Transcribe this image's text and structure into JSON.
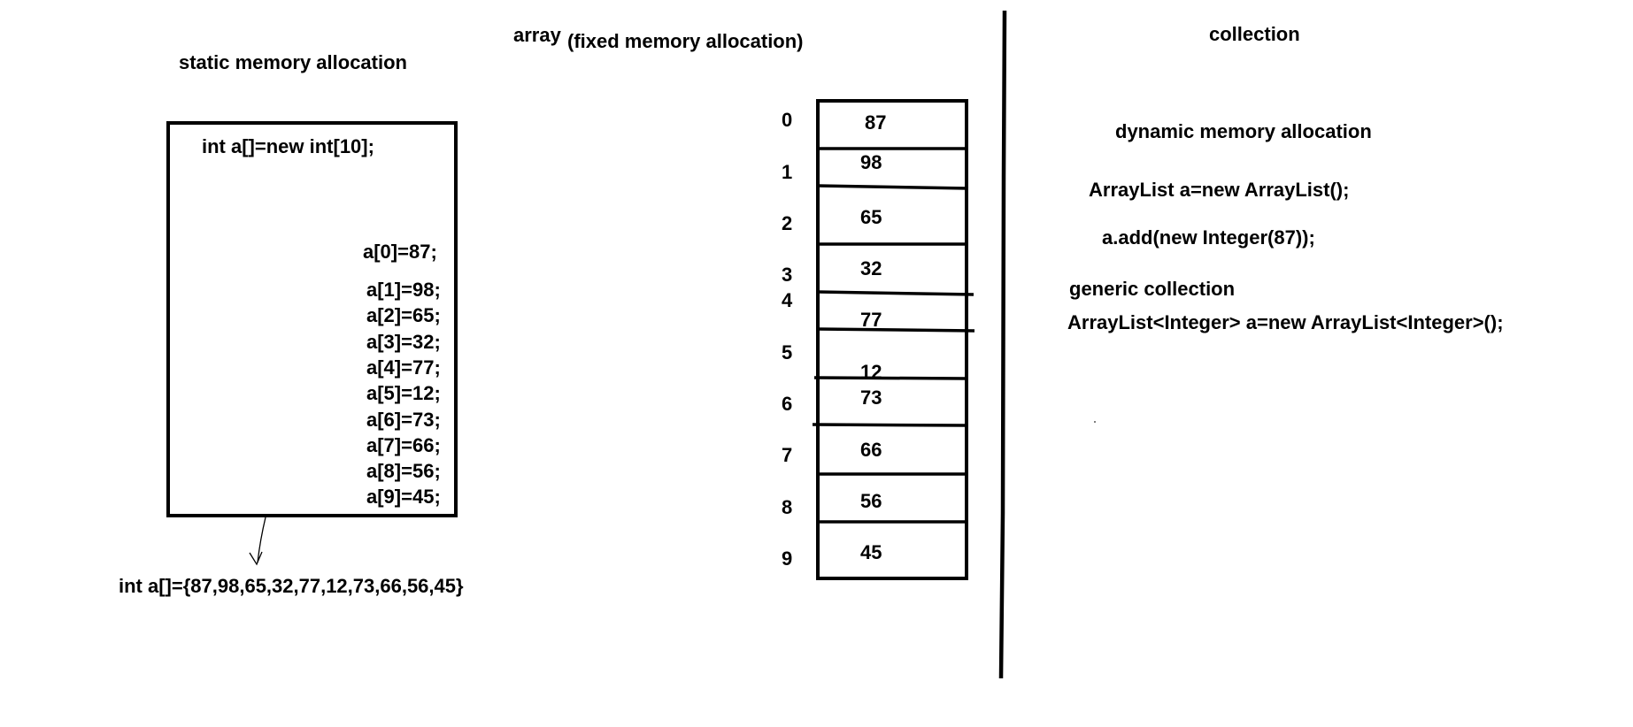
{
  "left": {
    "title": "static memory allocation",
    "declaration": "int a[]=new int[10];",
    "assignments": [
      "a[0]=87;",
      "a[1]=98;",
      "a[2]=65;",
      "a[3]=32;",
      "a[4]=77;",
      "a[5]=12;",
      "a[6]=73;",
      "a[7]=66;",
      "a[8]=56;",
      "a[9]=45;"
    ],
    "initializer": "int a[]={87,98,65,32,77,12,73,66,56,45}"
  },
  "middle": {
    "title_word": "array",
    "title_note": "(fixed memory allocation)",
    "indices": [
      "0",
      "1",
      "2",
      "3",
      "4",
      "5",
      "6",
      "7",
      "8",
      "9"
    ],
    "values": [
      "87",
      "98",
      "65",
      "32",
      "77",
      "12",
      "73",
      "66",
      "56",
      "45"
    ]
  },
  "right": {
    "title": "collection",
    "subtitle": "dynamic memory allocation",
    "line1": "ArrayList a=new ArrayList();",
    "line2": "a.add(new Integer(87));",
    "generic_title": "generic collection",
    "generic_line": "ArrayList<Integer> a=new ArrayList<Integer>();"
  }
}
